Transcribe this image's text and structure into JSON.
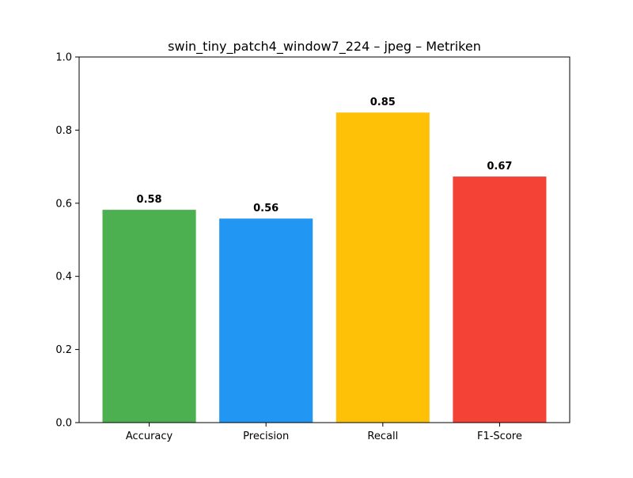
{
  "chart_data": {
    "type": "bar",
    "title": "swin_tiny_patch4_window7_224 – jpeg – Metriken",
    "xlabel": "",
    "ylabel": "",
    "categories": [
      "Accuracy",
      "Precision",
      "Recall",
      "F1-Score"
    ],
    "values": [
      0.582,
      0.558,
      0.848,
      0.673
    ],
    "value_labels": [
      "0.58",
      "0.56",
      "0.85",
      "0.67"
    ],
    "colors": [
      "#4caf50",
      "#2196f3",
      "#ffc107",
      "#f44336"
    ],
    "ylim": [
      0,
      1.0
    ],
    "yticks": [
      0.0,
      0.2,
      0.4,
      0.6,
      0.8,
      1.0
    ],
    "ytick_labels": [
      "0.0",
      "0.2",
      "0.4",
      "0.6",
      "0.8",
      "1.0"
    ],
    "grid": false,
    "legend": "none"
  }
}
